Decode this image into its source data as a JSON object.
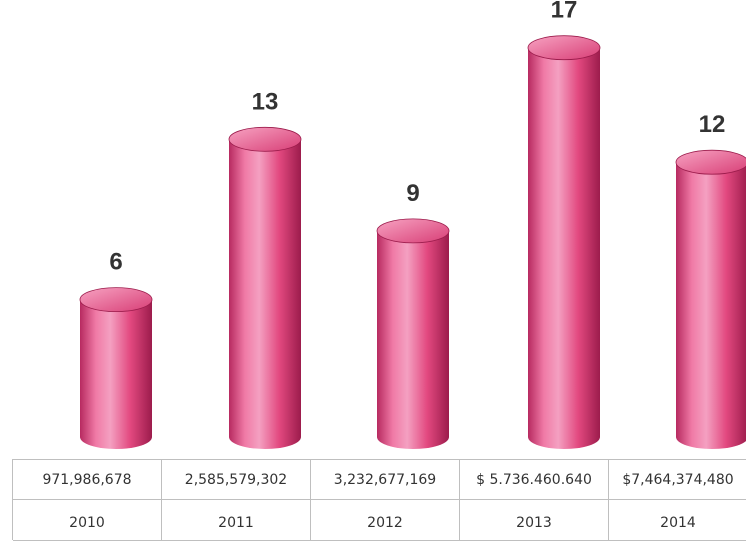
{
  "chart_data": {
    "type": "bar",
    "style": "3d-cylinder",
    "categories": [
      "2010",
      "2011",
      "2012",
      "2013",
      "2014"
    ],
    "values": [
      6,
      13,
      9,
      17,
      12
    ],
    "data_labels": [
      "6",
      "13",
      "9",
      "17",
      "12"
    ],
    "amounts": [
      "971,986,678",
      "2,585,579,302",
      "3,232,677,169",
      "$ 5.736.460.640",
      "$7,464,374,480"
    ],
    "title": "",
    "xlabel": "",
    "ylabel": "",
    "ylim": [
      0,
      17
    ],
    "grid": false,
    "bar_color": "#e54e85",
    "bar_highlight": "#f7a3c2",
    "bar_shadow": "#9c1c4c"
  }
}
